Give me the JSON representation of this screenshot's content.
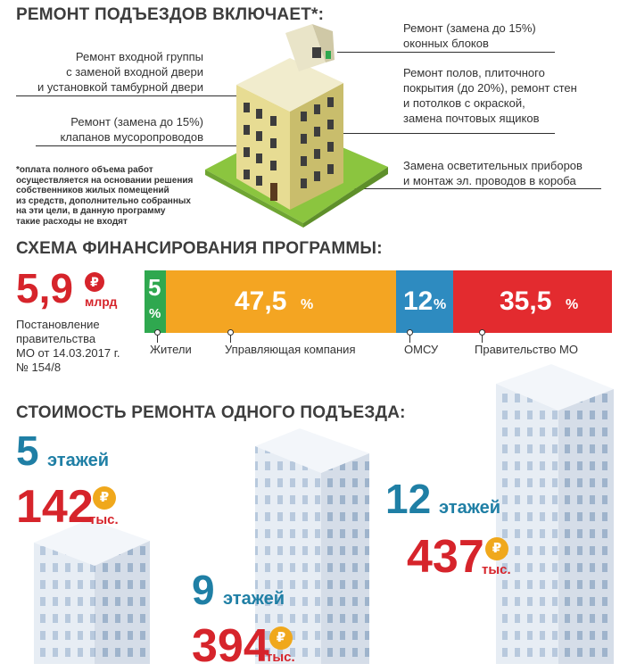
{
  "section1": {
    "title": "РЕМОНТ ПОДЪЕЗДОВ ВКЛЮЧАЕТ*:",
    "left_notes": [
      [
        "Ремонт входной группы",
        "с заменой входной двери",
        "и установкой тамбурной двери"
      ],
      [
        "Ремонт (замена до 15%)",
        "клапанов мусоропроводов"
      ]
    ],
    "right_notes": [
      [
        "Ремонт (замена до 15%)",
        "оконных блоков"
      ],
      [
        "Ремонт полов, плиточного",
        "покрытия (до 20%), ремонт стен",
        "и потолков с окраской,",
        "замена почтовых ящиков"
      ],
      [
        "Замена осветительных приборов",
        "и монтаж эл. проводов в короба"
      ]
    ],
    "footnote": [
      "*оплата полного объема работ",
      "осуществляется на основании решения",
      "собственников жилых помещений",
      "из средств, дополнительно собранных",
      "на эти цели, в данную программу",
      "такие расходы не входят"
    ]
  },
  "section2": {
    "title": "СХЕМА ФИНАНСИРОВАНИЯ ПРОГРАММЫ:",
    "total_value": "5,9",
    "total_unit": "млрд",
    "currency_symbol": "₽",
    "decree": [
      "Постановление",
      "правительства",
      "МО от 14.03.2017 г.",
      "№ 154/8"
    ],
    "segments": [
      {
        "num": "5",
        "pct": "%",
        "label": "Жители",
        "color": "#2fa84f"
      },
      {
        "num": "47,5",
        "pct": "%",
        "label": "Управляющая компания",
        "color": "#f4a522"
      },
      {
        "num": "12",
        "pct": "%",
        "label": "ОМСУ",
        "color": "#2e8bc0"
      },
      {
        "num": "35,5",
        "pct": "%",
        "label": "Правительство МО",
        "color": "#e32b2f"
      }
    ],
    "chart_data": {
      "type": "bar",
      "categories": [
        "Жители",
        "Управляющая компания",
        "ОМСУ",
        "Правительство МО"
      ],
      "values": [
        5,
        47.5,
        12,
        35.5
      ]
    }
  },
  "section3": {
    "title": "СТОИМОСТЬ РЕМОНТА ОДНОГО ПОДЪЕЗДА:",
    "items": [
      {
        "floors": "5",
        "floors_word": "этажей",
        "cost": "142",
        "unit": "тыс.",
        "currency": "₽"
      },
      {
        "floors": "9",
        "floors_word": "этажей",
        "cost": "394",
        "unit": "тыс.",
        "currency": "₽"
      },
      {
        "floors": "12",
        "floors_word": "этажей",
        "cost": "437",
        "unit": "тыс.",
        "currency": "₽"
      }
    ],
    "chart_data": {
      "type": "bar",
      "categories": [
        "5 этажей",
        "9 этажей",
        "12 этажей"
      ],
      "values": [
        142,
        394,
        437
      ]
    }
  },
  "colors": {
    "teal": "#1f7fa5",
    "red": "#d6242b",
    "gold": "#f0a81c",
    "green": "#2fa84f",
    "orange": "#f4a522",
    "blue": "#2e8bc0",
    "crimson": "#e32b2f"
  }
}
